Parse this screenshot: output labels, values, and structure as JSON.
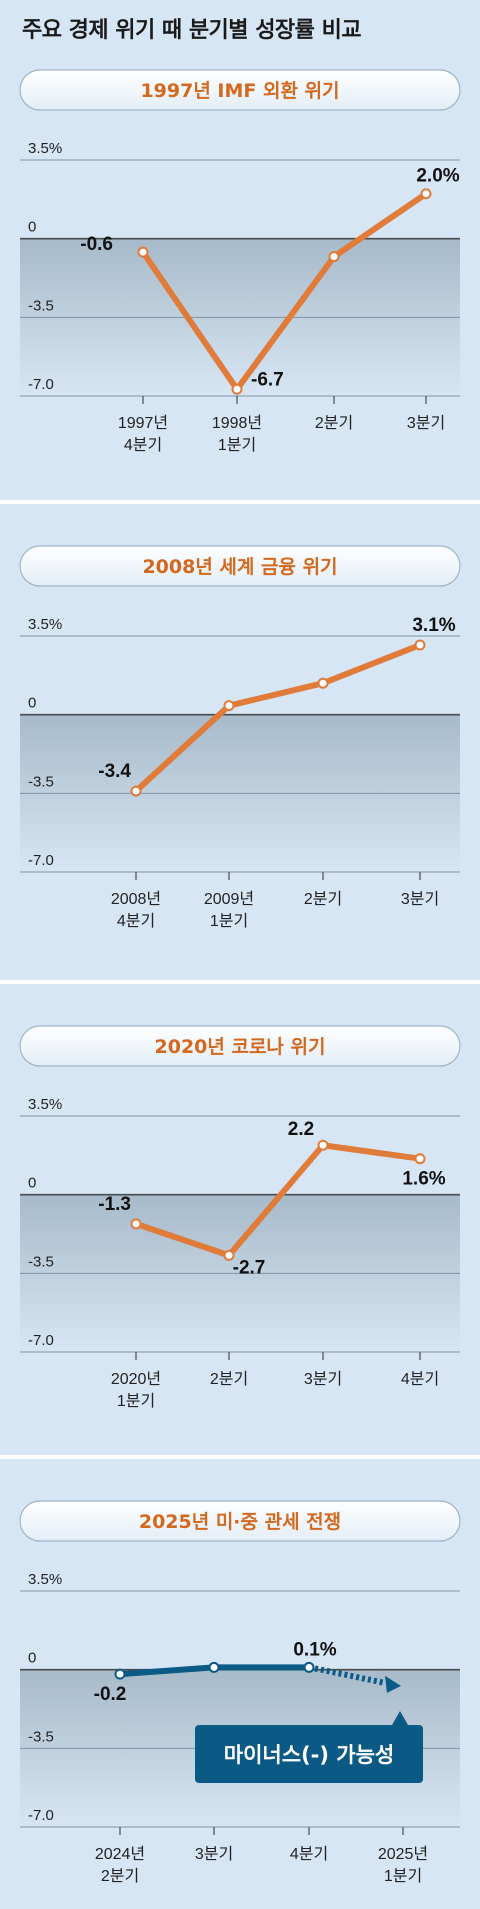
{
  "page": {
    "title": "주요 경제 위기 때 분기별 성장률 비교"
  },
  "colors": {
    "background": "#d7e6f4",
    "line_orange": "#e07b3a",
    "title_orange": "#d2691e",
    "line_blue": "#0b5a86",
    "callout": "#0b5a86",
    "negative_area_top": "#a7bac9",
    "negative_area_bottom": "#d7e6f4"
  },
  "chart_data": [
    {
      "type": "line",
      "title": "1997년 IMF 외환 위기",
      "ylim": [
        -7.0,
        3.5
      ],
      "yticks": [
        "3.5%",
        "0",
        "-3.5",
        "-7.0"
      ],
      "x_labels": [
        [
          "1997년",
          "4분기"
        ],
        [
          "1998년",
          "1분기"
        ],
        [
          "2분기"
        ],
        [
          "3분기"
        ]
      ],
      "series": [
        {
          "values": [
            -0.6,
            -6.7,
            -0.8,
            2.0
          ]
        }
      ],
      "value_labels": [
        "-0.6",
        "-6.7",
        "",
        "2.0%"
      ]
    },
    {
      "type": "line",
      "title": "2008년 세계 금융 위기",
      "ylim": [
        -7.0,
        3.5
      ],
      "yticks": [
        "3.5%",
        "0",
        "-3.5",
        "-7.0"
      ],
      "x_labels": [
        [
          "2008년",
          "4분기"
        ],
        [
          "2009년",
          "1분기"
        ],
        [
          "2분기"
        ],
        [
          "3분기"
        ]
      ],
      "series": [
        {
          "values": [
            -3.4,
            0.4,
            1.4,
            3.1
          ]
        }
      ],
      "value_labels": [
        "-3.4",
        "",
        "",
        "3.1%"
      ]
    },
    {
      "type": "line",
      "title": "2020년 코로나 위기",
      "ylim": [
        -7.0,
        3.5
      ],
      "yticks": [
        "3.5%",
        "0",
        "-3.5",
        "-7.0"
      ],
      "x_labels": [
        [
          "2020년",
          "1분기"
        ],
        [
          "2분기"
        ],
        [
          "3분기"
        ],
        [
          "4분기"
        ]
      ],
      "series": [
        {
          "values": [
            -1.3,
            -2.7,
            2.2,
            1.6
          ]
        }
      ],
      "value_labels": [
        "-1.3",
        "-2.7",
        "2.2",
        "1.6%"
      ]
    },
    {
      "type": "line",
      "title": "2025년 미·중 관세 전쟁",
      "ylim": [
        -7.0,
        3.5
      ],
      "yticks": [
        "3.5%",
        "0",
        "-3.5",
        "-7.0"
      ],
      "x_labels": [
        [
          "2024년",
          "2분기"
        ],
        [
          "3분기"
        ],
        [
          "4분기"
        ],
        [
          "2025년",
          "1분기"
        ]
      ],
      "series": [
        {
          "values": [
            -0.2,
            0.1,
            0.1,
            null
          ]
        }
      ],
      "projection": {
        "from_index": 2,
        "to_index": 3,
        "value": -0.5
      },
      "value_labels": [
        "-0.2",
        "",
        "0.1%",
        ""
      ],
      "callout": "마이너스(-) 가능성"
    }
  ]
}
